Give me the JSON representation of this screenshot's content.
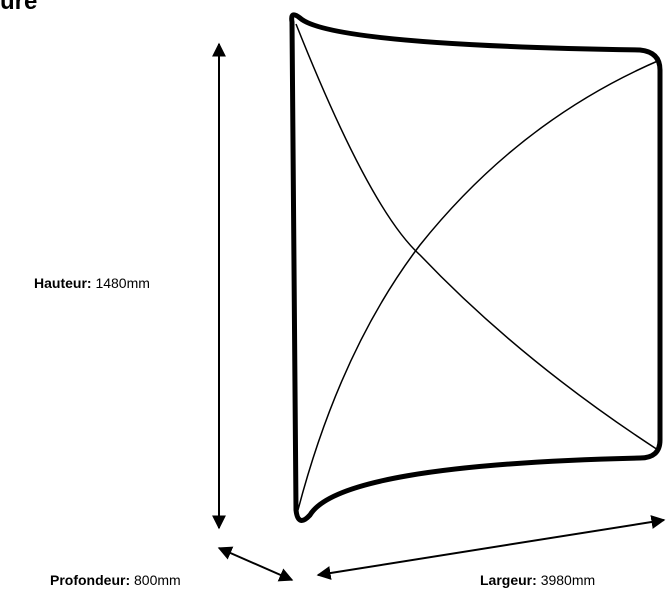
{
  "title_fragment": "ure",
  "dimensions": {
    "height": {
      "label": "Hauteur:",
      "value": "1480mm"
    },
    "depth": {
      "label": "Profondeur:",
      "value": "800mm"
    },
    "width": {
      "label": "Largeur:",
      "value": "3980mm"
    }
  },
  "colors": {
    "stroke": "#000000",
    "background": "#ffffff"
  }
}
